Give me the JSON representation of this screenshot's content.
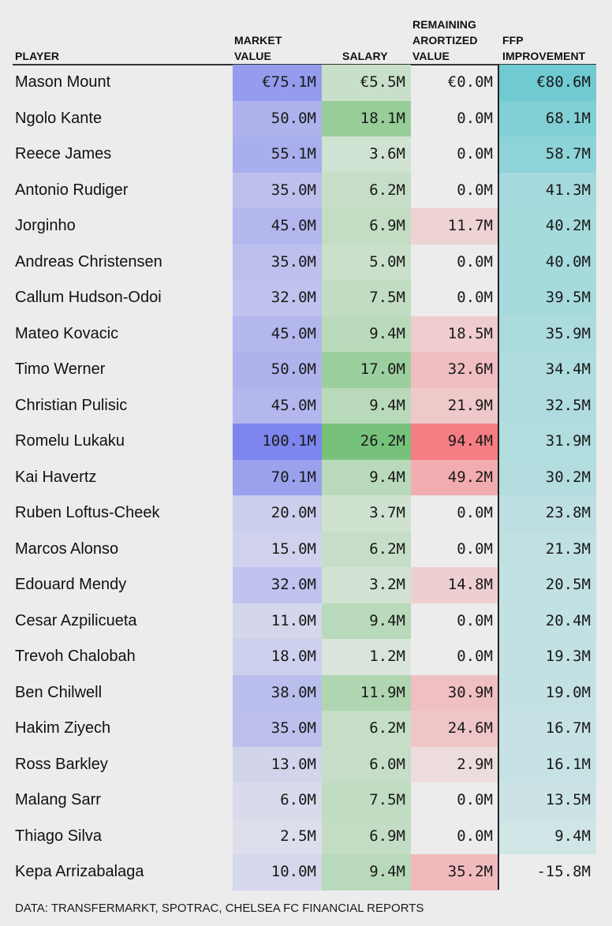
{
  "headers": {
    "player": "PLAYER",
    "market_value": "MARKET\nVALUE",
    "salary": "SALARY",
    "remaining": "REMAINING\nARORTIZED\nVALUE",
    "ffp": "FFP\nIMPROVEMENT"
  },
  "source": "DATA: TRANSFERMARKT, SPOTRAC, CHELSEA FC FINANCIAL REPORTS",
  "colors": {
    "market_value": "#7d86ee",
    "salary": "#77c27a",
    "remaining": "#f57d84",
    "ffp": "#6fcbd1"
  },
  "chart_data": {
    "type": "table",
    "columns": [
      "PLAYER",
      "MARKET VALUE",
      "SALARY",
      "REMAINING ARORTIZED VALUE",
      "FFP IMPROVEMENT"
    ],
    "unit": "€M",
    "rows": [
      {
        "player": "Mason Mount",
        "market_value": 75.1,
        "salary": 5.5,
        "remaining": 0.0,
        "ffp": 80.6
      },
      {
        "player": "Ngolo Kante",
        "market_value": 50.0,
        "salary": 18.1,
        "remaining": 0.0,
        "ffp": 68.1
      },
      {
        "player": "Reece James",
        "market_value": 55.1,
        "salary": 3.6,
        "remaining": 0.0,
        "ffp": 58.7
      },
      {
        "player": "Antonio Rudiger",
        "market_value": 35.0,
        "salary": 6.2,
        "remaining": 0.0,
        "ffp": 41.3
      },
      {
        "player": "Jorginho",
        "market_value": 45.0,
        "salary": 6.9,
        "remaining": 11.7,
        "ffp": 40.2
      },
      {
        "player": "Andreas Christensen",
        "market_value": 35.0,
        "salary": 5.0,
        "remaining": 0.0,
        "ffp": 40.0
      },
      {
        "player": "Callum Hudson-Odoi",
        "market_value": 32.0,
        "salary": 7.5,
        "remaining": 0.0,
        "ffp": 39.5
      },
      {
        "player": "Mateo Kovacic",
        "market_value": 45.0,
        "salary": 9.4,
        "remaining": 18.5,
        "ffp": 35.9
      },
      {
        "player": "Timo Werner",
        "market_value": 50.0,
        "salary": 17.0,
        "remaining": 32.6,
        "ffp": 34.4
      },
      {
        "player": "Christian Pulisic",
        "market_value": 45.0,
        "salary": 9.4,
        "remaining": 21.9,
        "ffp": 32.5
      },
      {
        "player": "Romelu Lukaku",
        "market_value": 100.1,
        "salary": 26.2,
        "remaining": 94.4,
        "ffp": 31.9
      },
      {
        "player": "Kai Havertz",
        "market_value": 70.1,
        "salary": 9.4,
        "remaining": 49.2,
        "ffp": 30.2
      },
      {
        "player": "Ruben Loftus-Cheek",
        "market_value": 20.0,
        "salary": 3.7,
        "remaining": 0.0,
        "ffp": 23.8
      },
      {
        "player": "Marcos Alonso",
        "market_value": 15.0,
        "salary": 6.2,
        "remaining": 0.0,
        "ffp": 21.3
      },
      {
        "player": "Edouard Mendy",
        "market_value": 32.0,
        "salary": 3.2,
        "remaining": 14.8,
        "ffp": 20.5
      },
      {
        "player": "Cesar Azpilicueta",
        "market_value": 11.0,
        "salary": 9.4,
        "remaining": 0.0,
        "ffp": 20.4
      },
      {
        "player": "Trevoh Chalobah",
        "market_value": 18.0,
        "salary": 1.2,
        "remaining": 0.0,
        "ffp": 19.3
      },
      {
        "player": "Ben Chilwell",
        "market_value": 38.0,
        "salary": 11.9,
        "remaining": 30.9,
        "ffp": 19.0
      },
      {
        "player": "Hakim Ziyech",
        "market_value": 35.0,
        "salary": 6.2,
        "remaining": 24.6,
        "ffp": 16.7
      },
      {
        "player": "Ross Barkley",
        "market_value": 13.0,
        "salary": 6.0,
        "remaining": 2.9,
        "ffp": 16.1
      },
      {
        "player": "Malang Sarr",
        "market_value": 6.0,
        "salary": 7.5,
        "remaining": 0.0,
        "ffp": 13.5
      },
      {
        "player": "Thiago Silva",
        "market_value": 2.5,
        "salary": 6.9,
        "remaining": 0.0,
        "ffp": 9.4
      },
      {
        "player": "Kepa Arrizabalaga",
        "market_value": 10.0,
        "salary": 9.4,
        "remaining": 35.2,
        "ffp": -15.8
      }
    ]
  }
}
